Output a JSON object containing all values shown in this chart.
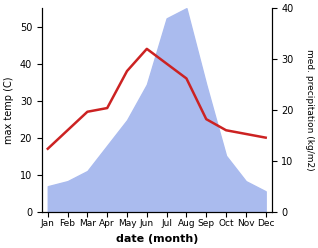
{
  "months": [
    "Jan",
    "Feb",
    "Mar",
    "Apr",
    "May",
    "Jun",
    "Jul",
    "Aug",
    "Sep",
    "Oct",
    "Nov",
    "Dec"
  ],
  "temperature": [
    17,
    22,
    27,
    28,
    38,
    44,
    40,
    36,
    25,
    22,
    21,
    20
  ],
  "precipitation": [
    5,
    6,
    8,
    13,
    18,
    25,
    38,
    40,
    25,
    11,
    6,
    4
  ],
  "temp_color": "#cc2222",
  "precip_color": "#aabbee",
  "temp_ylim": [
    0,
    55
  ],
  "precip_ylim": [
    0,
    40
  ],
  "xlabel": "date (month)",
  "ylabel_left": "max temp (C)",
  "ylabel_right": "med. precipitation (kg/m2)",
  "temp_yticks": [
    0,
    10,
    20,
    30,
    40,
    50
  ],
  "precip_yticks": [
    0,
    10,
    20,
    30,
    40
  ],
  "fig_width": 3.18,
  "fig_height": 2.48,
  "dpi": 100
}
